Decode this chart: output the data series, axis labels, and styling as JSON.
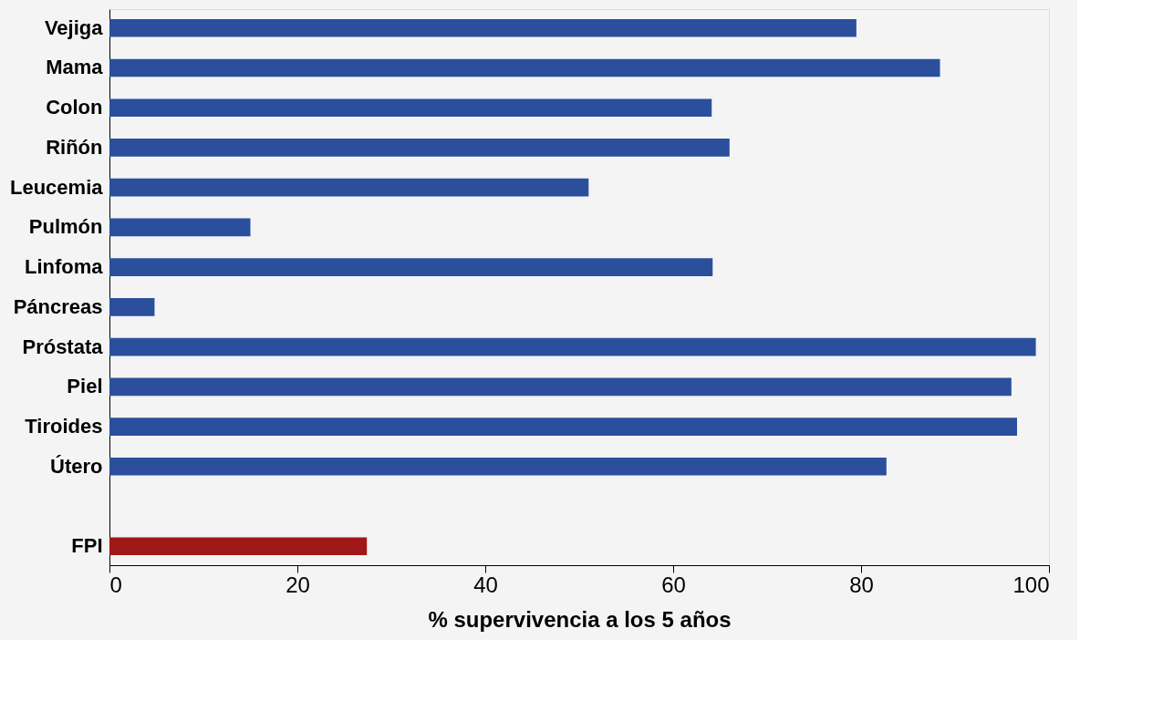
{
  "chart_data": {
    "type": "bar",
    "orientation": "horizontal",
    "xlabel": "% supervivencia a los 5 años",
    "categories": [
      "Vejiga",
      "Mama",
      "Colon",
      "Riñón",
      "Leucemia",
      "Pulmón",
      "Linfoma",
      "Páncreas",
      "Próstata",
      "Piel",
      "Tiroides",
      "Útero",
      null,
      "FPI"
    ],
    "values": [
      79.5,
      88.4,
      64.1,
      66,
      51,
      15,
      64.2,
      4.8,
      98.6,
      96,
      96.6,
      82.7,
      null,
      27.4
    ],
    "colors": [
      "#2b4f9c",
      "#2b4f9c",
      "#2b4f9c",
      "#2b4f9c",
      "#2b4f9c",
      "#2b4f9c",
      "#2b4f9c",
      "#2b4f9c",
      "#2b4f9c",
      "#2b4f9c",
      "#2b4f9c",
      "#2b4f9c",
      "#2b4f9c",
      "#a01818"
    ],
    "xlim": [
      0,
      100
    ],
    "xticks": [
      0,
      20,
      40,
      60,
      80,
      100
    ],
    "grid": false
  }
}
